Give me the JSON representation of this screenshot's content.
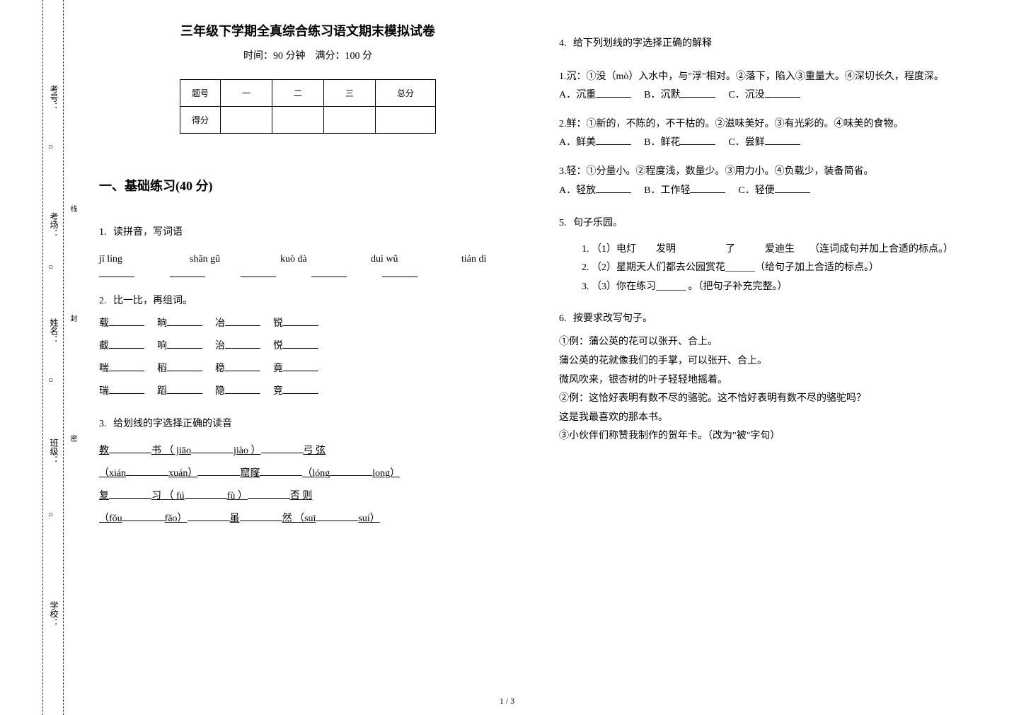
{
  "binding": {
    "labels": {
      "kaohao": "考号：",
      "kaochang": "考场：",
      "xingming": "姓名：",
      "banji": "班级：",
      "xuexiao": "学校："
    },
    "circle": "○",
    "strip_words": {
      "xian": "线",
      "feng": "封",
      "mi": "密"
    }
  },
  "header": {
    "title": "三年级下学期全真综合练习语文期末模拟试卷",
    "subtitle": "时间：90 分钟　满分：100 分"
  },
  "score_table": {
    "row1": [
      "题号",
      "一",
      "二",
      "三",
      "总分"
    ],
    "row2_lbl": "得分"
  },
  "section1": {
    "heading": "一、基础练习(40 分)"
  },
  "q1": {
    "num": "1.",
    "text": "读拼音，写词语",
    "pinyin": [
      "jī líng",
      "shān gǔ",
      "kuò dà",
      "duì wǔ",
      "tián dì"
    ]
  },
  "q2": {
    "num": "2.",
    "text": "比一比，再组词。",
    "rows": [
      [
        "载",
        "晌",
        "冶",
        "锐"
      ],
      [
        "截",
        "响",
        "治",
        "悦"
      ],
      [
        "喘",
        "稻",
        "稳",
        "竟"
      ],
      [
        "瑞",
        "蹈",
        "隐",
        "竞"
      ]
    ]
  },
  "q3": {
    "num": "3.",
    "text": "给划线的字选择正确的读音",
    "rows": [
      {
        "a": "教",
        "b": "书 （ jiāo",
        "c": "jiào ）",
        "d": "弓  弦"
      },
      {
        "a": "（xián",
        "b": "xuán）",
        "c": "窟窿",
        "d": "（lóng",
        "e": "long）"
      },
      {
        "a": "复",
        "b": "习 （ fú",
        "c": "fù ）",
        "d": "否  则"
      },
      {
        "a": "（fǒu",
        "b": "fǎo）",
        "c": "虽",
        "d": "然 （suī",
        "e": "suí）"
      }
    ]
  },
  "q4": {
    "num": "4.",
    "text": "给下列划线的字选择正确的解释",
    "items": [
      {
        "lead": "1.沉：①没（mò）入水中，与\"浮\"相对。②落下，陷入③重量大。④深切长久，程度深。",
        "opts": [
          "A．沉重",
          "B．沉默",
          "C．沉没"
        ]
      },
      {
        "lead": "2.鲜：①新的，不陈的，不干枯的。②滋味美好。③有光彩的。④味美的食物。",
        "opts": [
          "A．鲜美",
          "B．鲜花",
          "C．尝鲜"
        ]
      },
      {
        "lead": "3.轻：①分量小。②程度浅，数量少。③用力小。④负载少，装备简省。",
        "opts": [
          "A．轻放",
          "B．工作轻",
          "C．轻便"
        ]
      }
    ]
  },
  "q5": {
    "num": "5.",
    "text": "句子乐园。",
    "subs": [
      "（1）电灯　　发明　　　　　了　　　爱迪生　　（连词成句并加上合适的标点。）",
      "（2）星期天人们都去公园赏花______（给句子加上合适的标点。）",
      "（3）你在练习______ 。（把句子补充完整。）"
    ],
    "subnums": [
      "1.",
      "2.",
      "3."
    ]
  },
  "q6": {
    "num": "6.",
    "text": "按要求改写句子。",
    "lines": [
      "①例：蒲公英的花可以张开、合上。",
      "蒲公英的花就像我们的手掌，可以张开、合上。",
      "微风吹来，银杏树的叶子轻轻地摇着。",
      "②例：这恰好表明有数不尽的骆驼。这不恰好表明有数不尽的骆驼吗？",
      "这是我最喜欢的那本书。",
      "③小伙伴们称赞我制作的贺年卡。（改为\"被\"字句）"
    ]
  },
  "pagenum": "1 / 3"
}
